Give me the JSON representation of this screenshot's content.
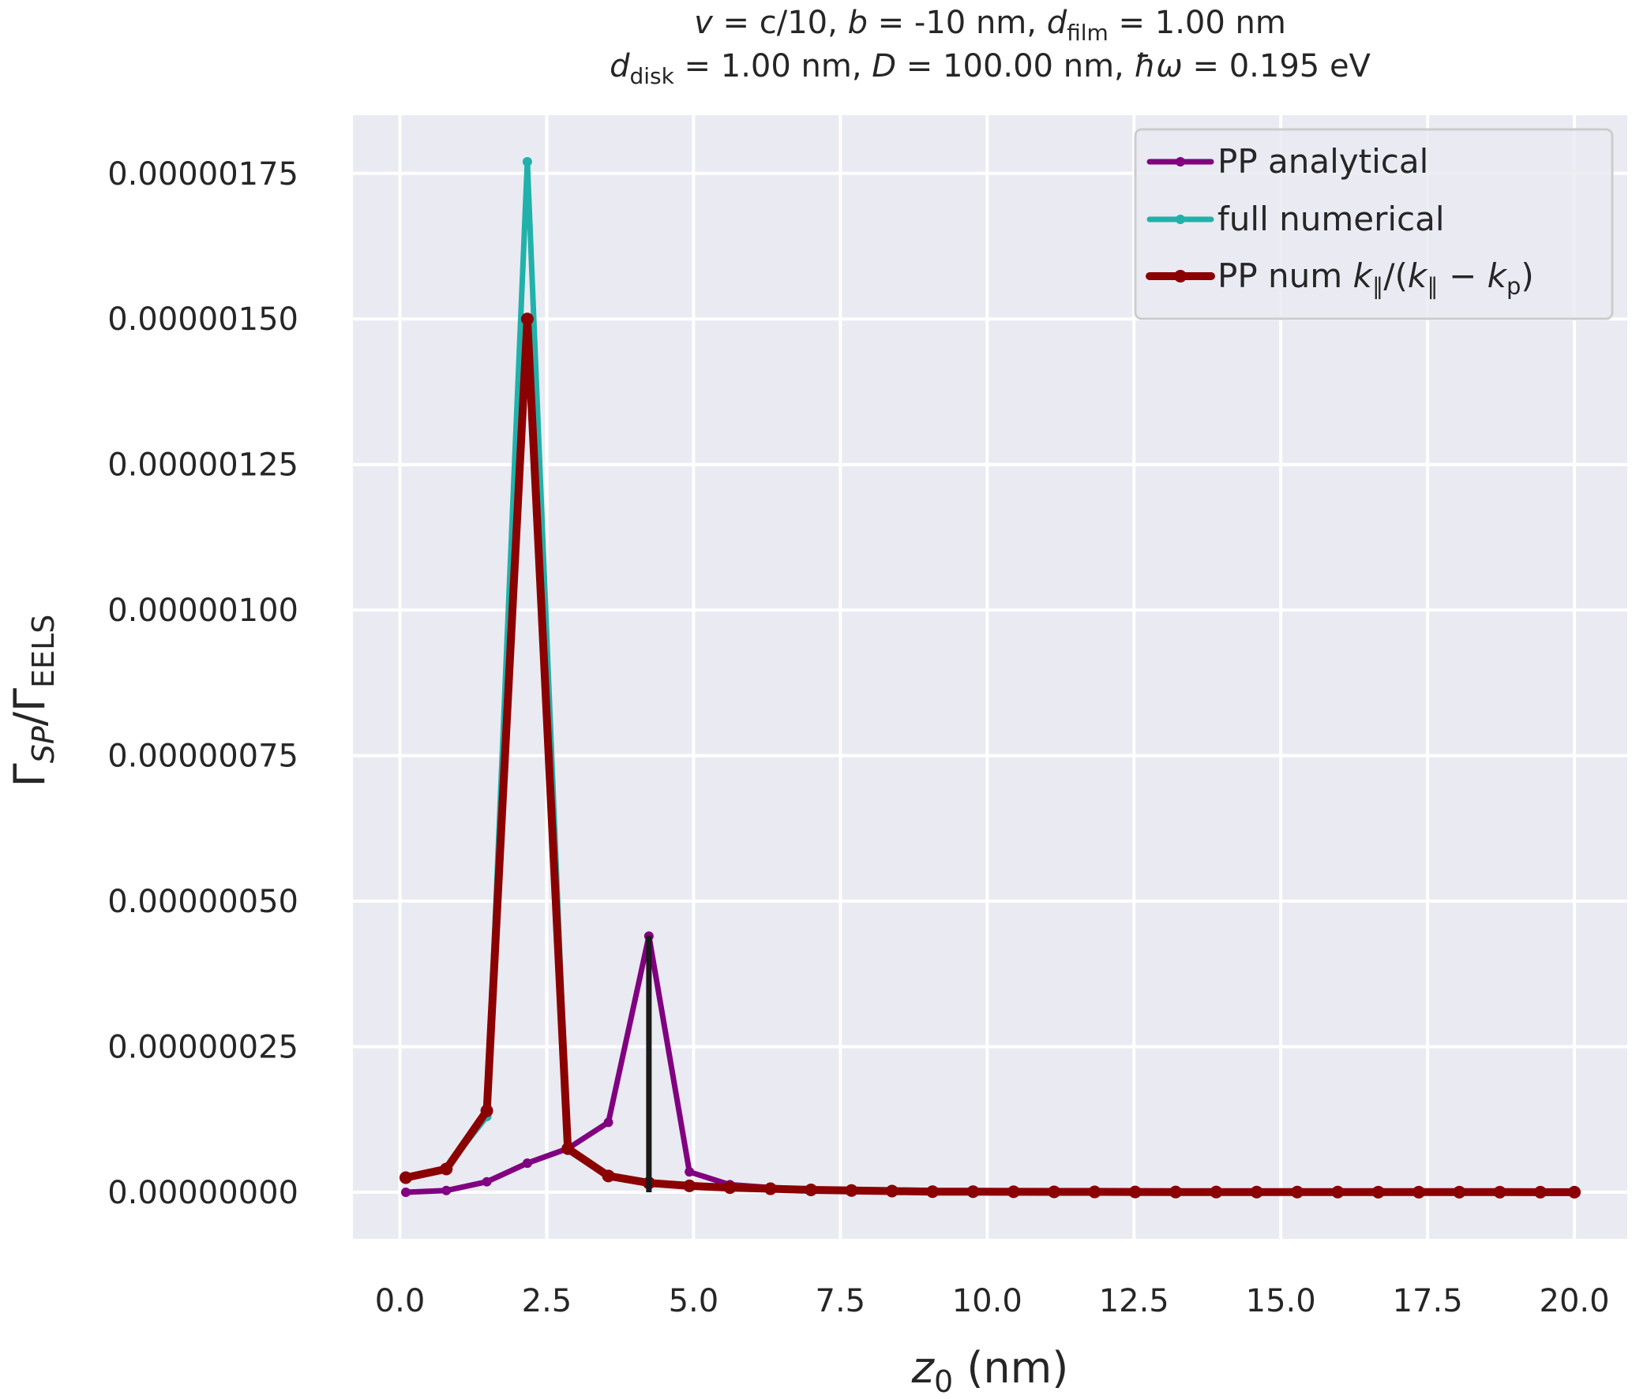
{
  "chart_data": {
    "type": "line",
    "title_lines": [
      {
        "parts": [
          {
            "t": "v",
            "i": true
          },
          {
            "t": " = c/10, "
          },
          {
            "t": "b",
            "i": true
          },
          {
            "t": " = -10 nm, "
          },
          {
            "t": "d",
            "i": true
          },
          {
            "t": "film",
            "sub": true
          },
          {
            "t": " = 1.00 nm"
          }
        ]
      },
      {
        "parts": [
          {
            "t": "d",
            "i": true
          },
          {
            "t": "disk",
            "sub": true
          },
          {
            "t": " = 1.00 nm, "
          },
          {
            "t": "D",
            "i": true
          },
          {
            "t": " = 100.00 nm, "
          },
          {
            "t": "ħω",
            "i": true
          },
          {
            "t": " = 0.195 eV"
          }
        ]
      }
    ],
    "xlabel_parts": [
      {
        "t": "z",
        "i": true
      },
      {
        "t": "0",
        "sub": true
      },
      {
        "t": " (nm)"
      }
    ],
    "ylabel_parts": [
      {
        "t": "Γ"
      },
      {
        "t": "SP",
        "sub": true,
        "i": true
      },
      {
        "t": "/Γ"
      },
      {
        "t": "EELS",
        "sub": true
      }
    ],
    "xlim": [
      -0.8,
      20.9
    ],
    "ylim": [
      -8e-08,
      1.85e-06
    ],
    "x_ticks": [
      0.0,
      2.5,
      5.0,
      7.5,
      10.0,
      12.5,
      15.0,
      17.5,
      20.0
    ],
    "x_tick_labels": [
      "0.0",
      "2.5",
      "5.0",
      "7.5",
      "10.0",
      "12.5",
      "15.0",
      "17.5",
      "20.0"
    ],
    "y_ticks": [
      0.0,
      2.5e-07,
      5e-07,
      7.5e-07,
      1e-06,
      1.25e-06,
      1.5e-06,
      1.75e-06
    ],
    "y_tick_labels": [
      "0.00000000",
      "0.00000025",
      "0.00000050",
      "0.00000075",
      "0.00000100",
      "0.00000125",
      "0.00000150",
      "0.00000175"
    ],
    "grid": true,
    "legend_position": "top-right",
    "x": [
      0.1,
      0.79,
      1.48,
      2.17,
      2.86,
      3.55,
      4.24,
      4.93,
      5.62,
      6.31,
      7.0,
      7.69,
      8.38,
      9.07,
      9.76,
      10.45,
      11.14,
      11.83,
      12.52,
      13.21,
      13.9,
      14.59,
      15.28,
      15.97,
      16.66,
      17.35,
      18.04,
      18.73,
      19.42,
      20.0
    ],
    "series": [
      {
        "name": "PP analytical",
        "color": "#800080",
        "lw": 7,
        "marker_r": 6,
        "values": [
          0.0,
          3e-09,
          1.8e-08,
          5e-08,
          7.5e-08,
          1.2e-07,
          4.4e-07,
          3.5e-08,
          1.3e-08,
          8e-09,
          5e-09,
          3e-09,
          2e-09,
          1e-09,
          1e-09,
          1e-09,
          5e-10,
          5e-10,
          4e-10,
          3e-10,
          3e-10,
          2e-10,
          2e-10,
          2e-10,
          1e-10,
          1e-10,
          1e-10,
          1e-10,
          1e-10,
          1e-10
        ]
      },
      {
        "name": "full numerical",
        "color": "#20b2aa",
        "lw": 7,
        "marker_r": 6,
        "values": [
          2.5e-08,
          4.2e-08,
          1.3e-07,
          1.77e-06,
          7.2e-08,
          2.7e-08,
          1.5e-08,
          1e-08,
          7e-09,
          5e-09,
          3e-09,
          2e-09,
          2e-09,
          1e-09,
          1e-09,
          8e-10,
          7e-10,
          6e-10,
          5e-10,
          4e-10,
          4e-10,
          3e-10,
          3e-10,
          3e-10,
          2e-10,
          2e-10,
          2e-10,
          2e-10,
          1e-10,
          1e-10
        ]
      },
      {
        "name": "PP num k∥/(k∥ − kp)",
        "color": "#8b0000",
        "lw": 10,
        "marker_r": 8,
        "values": [
          2.5e-08,
          4e-08,
          1.4e-07,
          1.5e-06,
          7.5e-08,
          2.8e-08,
          1.6e-08,
          1.1e-08,
          8e-09,
          6e-09,
          4e-09,
          3e-09,
          2e-09,
          1e-09,
          1e-09,
          8e-10,
          7e-10,
          6e-10,
          5e-10,
          4e-10,
          4e-10,
          3e-10,
          3e-10,
          3e-10,
          2e-10,
          2e-10,
          2e-10,
          2e-10,
          1e-10,
          1e-10
        ]
      }
    ],
    "vertical_line": {
      "x": 4.24,
      "y_from": 0.0,
      "y_to": 4.4e-07,
      "color": "#1a1a1a"
    },
    "legend_entries": [
      {
        "series": 0,
        "parts": [
          {
            "t": "PP analytical"
          }
        ]
      },
      {
        "series": 1,
        "parts": [
          {
            "t": "full numerical"
          }
        ]
      },
      {
        "series": 2,
        "parts": [
          {
            "t": "PP num "
          },
          {
            "t": "k",
            "i": true
          },
          {
            "t": "∥",
            "sub": true
          },
          {
            "t": "/("
          },
          {
            "t": "k",
            "i": true
          },
          {
            "t": "∥",
            "sub": true
          },
          {
            "t": " − "
          },
          {
            "t": "k",
            "i": true
          },
          {
            "t": "p",
            "sub": true
          },
          {
            "t": ")"
          }
        ]
      }
    ],
    "colors": {
      "plot_bg": "#eaeaf2",
      "grid": "#ffffff",
      "text": "#262626"
    }
  }
}
